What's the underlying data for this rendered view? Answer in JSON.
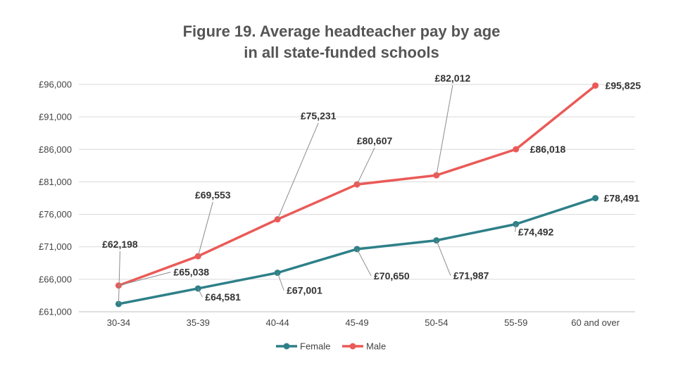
{
  "chart_data": {
    "type": "line",
    "title_line1": "Figure 19. Average headteacher pay by age",
    "title_line2": "in all state-funded schools",
    "categories": [
      "30-34",
      "35-39",
      "40-44",
      "45-49",
      "50-54",
      "55-59",
      "60 and over"
    ],
    "series": [
      {
        "name": "Female",
        "color": "#2E8088",
        "values": [
          62198,
          64581,
          67001,
          70650,
          71987,
          74492,
          78491
        ],
        "labels": [
          "£62,198",
          "£64,581",
          "£67,001",
          "£70,650",
          "£71,987",
          "£74,492",
          "£78,491"
        ]
      },
      {
        "name": "Male",
        "color": "#EA5A57",
        "values": [
          65038,
          69553,
          75231,
          80607,
          82012,
          86018,
          95825
        ],
        "labels": [
          "£65,038",
          "£69,553",
          "£75,231",
          "£80,607",
          "£82,012",
          "£86,018",
          "£95,825"
        ]
      }
    ],
    "ylim": [
      61000,
      96000
    ],
    "yticks": [
      61000,
      66000,
      71000,
      76000,
      81000,
      86000,
      91000,
      96000
    ],
    "ytick_labels": [
      "£61,000",
      "£66,000",
      "£71,000",
      "£76,000",
      "£81,000",
      "£86,000",
      "£91,000",
      "£96,000"
    ],
    "grid": true,
    "legend_position": "bottom"
  }
}
